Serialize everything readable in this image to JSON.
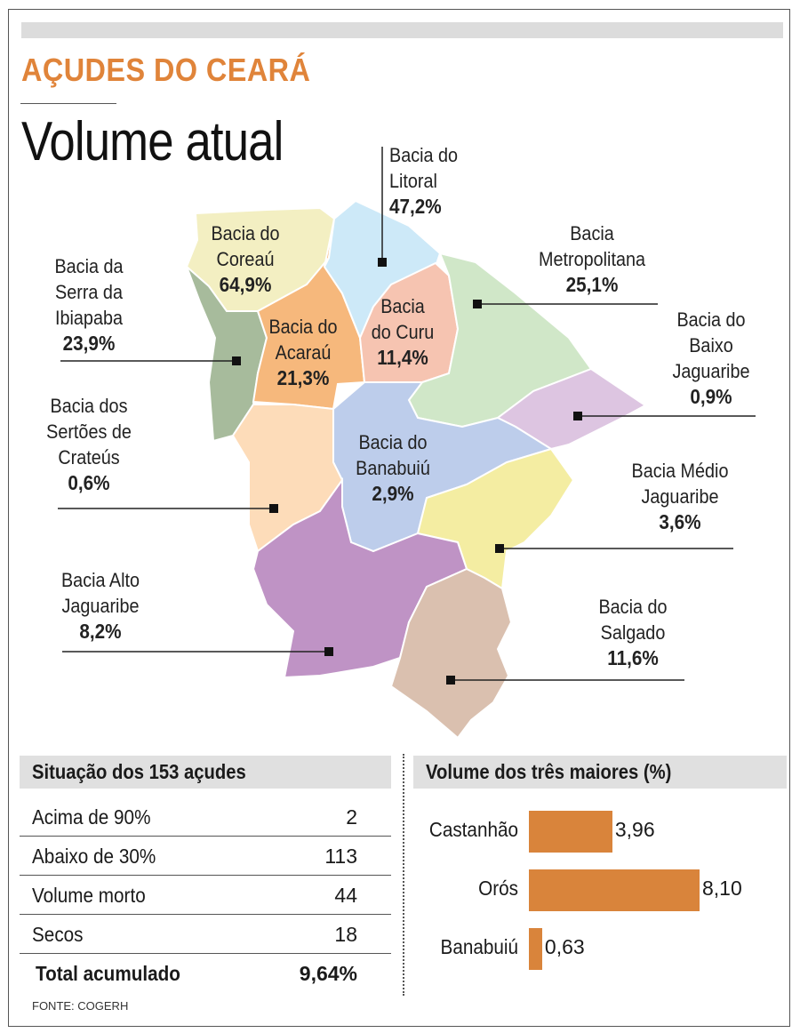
{
  "header": {
    "kicker": "AÇUDES DO CEARÁ",
    "title": "Volume atual"
  },
  "map": {
    "regions": [
      {
        "name": "Bacia do\nCoreaú",
        "value": "64,9%",
        "color": "#f3efc2"
      },
      {
        "name": "Bacia da\nSerra da\nIbiapaba",
        "value": "23,9%",
        "color": "#a7bb9c"
      },
      {
        "name": "Bacia do\nAcaraú",
        "value": "21,3%",
        "color": "#f6b87c"
      },
      {
        "name": "Bacia do\nLitoral",
        "value": "47,2%",
        "color": "#cde9f8"
      },
      {
        "name": "Bacia\ndo Curu",
        "value": "11,4%",
        "color": "#f6c4b1"
      },
      {
        "name": "Bacia\nMetropolitana",
        "value": "25,1%",
        "color": "#d0e7c8"
      },
      {
        "name": "Bacia do\nBaixo\nJaguaribe",
        "value": "0,9%",
        "color": "#ddc5e1"
      },
      {
        "name": "Bacia do\nBanabuiú",
        "value": "2,9%",
        "color": "#bdcdeb"
      },
      {
        "name": "Bacia Médio\nJaguaribe",
        "value": "3,6%",
        "color": "#f4eda2"
      },
      {
        "name": "Bacia dos\nSertões de\nCrateús",
        "value": "0,6%",
        "color": "#fddcb9"
      },
      {
        "name": "Bacia Alto\nJaguaribe",
        "value": "8,2%",
        "color": "#bf93c5"
      },
      {
        "name": "Bacia do\nSalgado",
        "value": "11,6%",
        "color": "#dac0af"
      }
    ]
  },
  "table": {
    "title": "Situação dos 153 açudes",
    "rows": [
      {
        "label": "Acima de 90%",
        "value": "2"
      },
      {
        "label": "Abaixo de 30%",
        "value": "113"
      },
      {
        "label": "Volume morto",
        "value": "44"
      },
      {
        "label": "Secos",
        "value": "18"
      }
    ],
    "total": {
      "label": "Total acumulado",
      "value": "9,64%"
    }
  },
  "source": "FONTE: COGERH",
  "chart_data": {
    "type": "bar",
    "orientation": "horizontal",
    "title": "Volume dos três maiores (%)",
    "categories": [
      "Castanhão",
      "Orós",
      "Banabuiú"
    ],
    "values": [
      3.96,
      8.1,
      0.63
    ],
    "labels": [
      "3,96",
      "8,10",
      "0,63"
    ],
    "color": "#d9843b",
    "grid": false
  }
}
